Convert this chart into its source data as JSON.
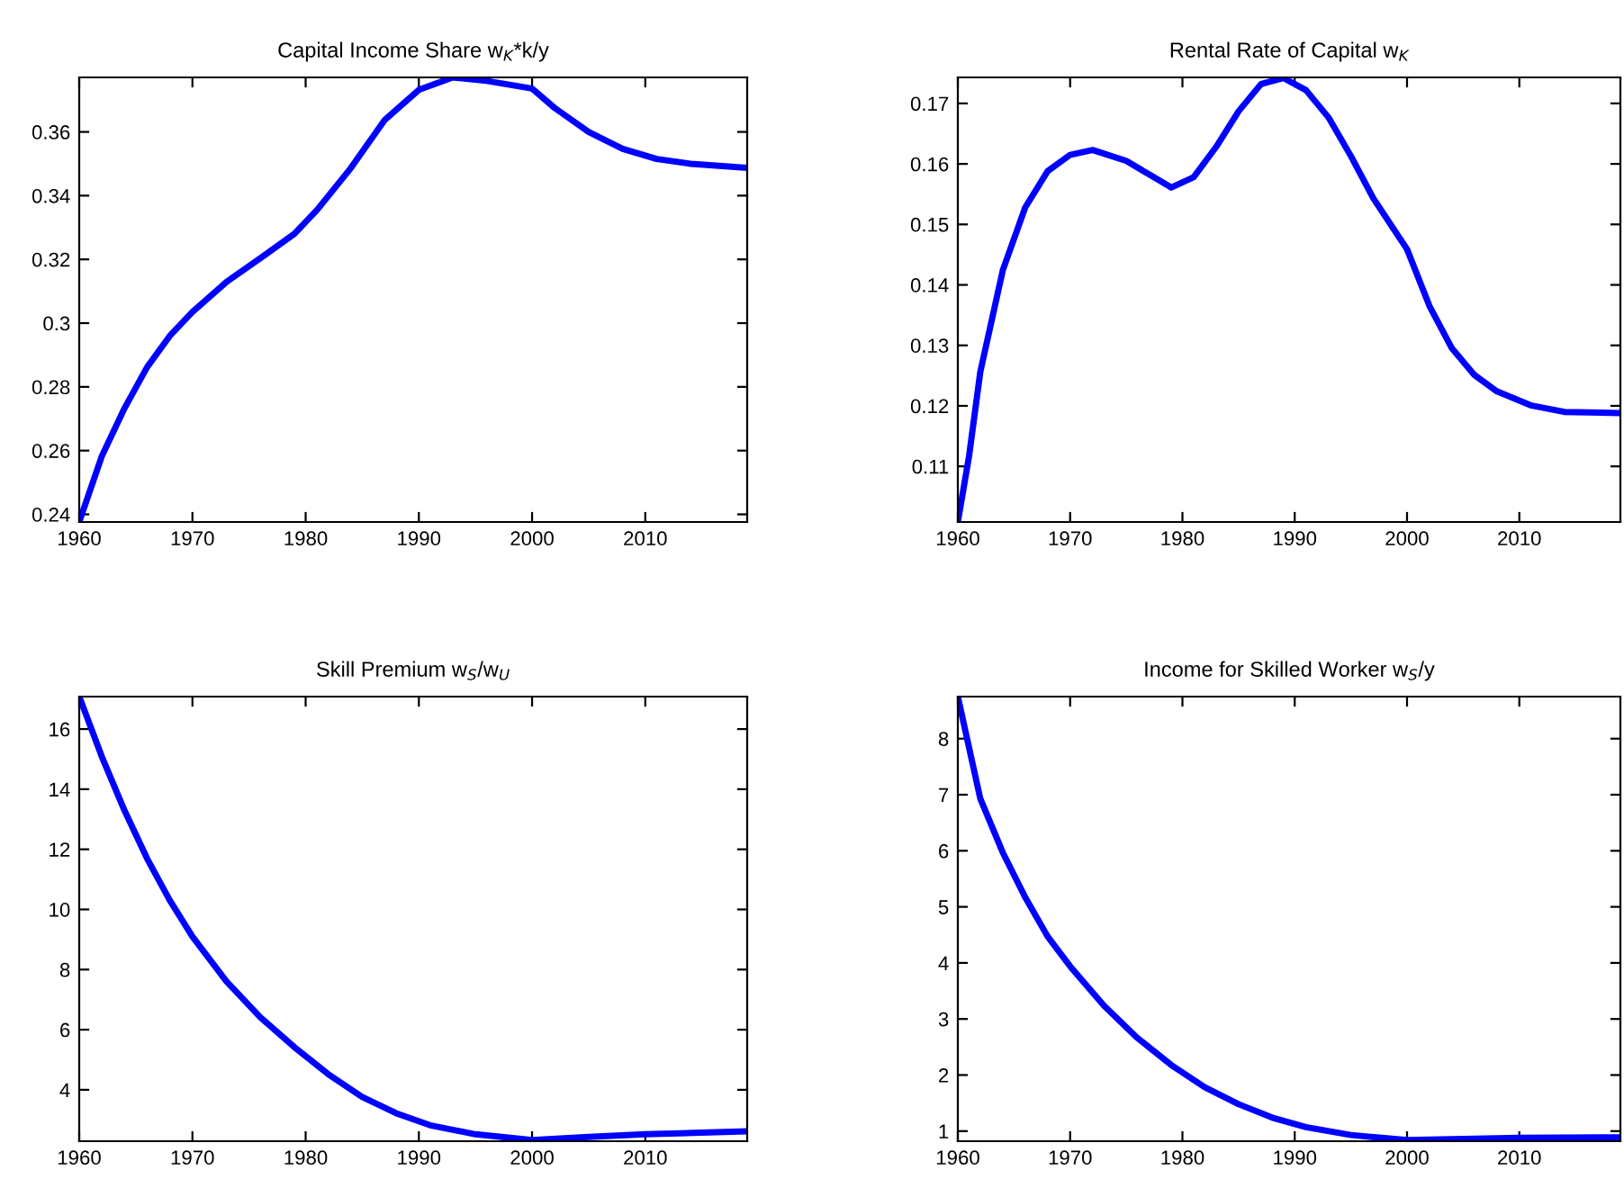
{
  "chart_data": [
    {
      "type": "line",
      "title": "Capital Income Share w$_{K}$*k/y",
      "x": [
        1960,
        1962,
        1964,
        1966,
        1968,
        1970,
        1973,
        1976,
        1979,
        1981,
        1984,
        1987,
        1990,
        1993,
        1996,
        2000,
        2002,
        2005,
        2008,
        2011,
        2014,
        2019
      ],
      "series": [
        {
          "color": "#0000ff",
          "values": [
            0.2376,
            0.2583,
            0.2733,
            0.2862,
            0.296,
            0.3035,
            0.3129,
            0.3204,
            0.328,
            0.3355,
            0.3487,
            0.3638,
            0.3732,
            0.3771,
            0.376,
            0.3736,
            0.3675,
            0.36,
            0.3547,
            0.3515,
            0.35,
            0.3487
          ]
        }
      ],
      "xlim": [
        1960,
        2019
      ],
      "xticks": [
        1960,
        1970,
        1980,
        1990,
        2000,
        2010
      ],
      "ylim": [
        0.2376,
        0.3771
      ],
      "yticks": [
        {
          "value": 0.24,
          "label": "0.24"
        },
        {
          "value": 0.26,
          "label": "0.26"
        },
        {
          "value": 0.28,
          "label": "0.28"
        },
        {
          "value": 0.3,
          "label": "0.3"
        },
        {
          "value": 0.32,
          "label": "0.32"
        },
        {
          "value": 0.34,
          "label": "0.34"
        },
        {
          "value": 0.36,
          "label": "0.36"
        }
      ],
      "grid": false
    },
    {
      "type": "line",
      "title": "Rental Rate of Capital w$_{K}$",
      "x": [
        1960,
        1961,
        1962,
        1964,
        1966,
        1968,
        1970,
        1972,
        1975,
        1977,
        1979,
        1981,
        1983,
        1985,
        1987,
        1989,
        1991,
        1993,
        1995,
        1997,
        2000,
        2002,
        2004,
        2006,
        2008,
        2011,
        2014,
        2019
      ],
      "series": [
        {
          "color": "#0000ff",
          "values": [
            0.1008,
            0.1117,
            0.1256,
            0.1424,
            0.1528,
            0.1588,
            0.1615,
            0.1623,
            0.1605,
            0.1583,
            0.1561,
            0.1578,
            0.1628,
            0.1687,
            0.1732,
            0.1742,
            0.1722,
            0.1677,
            0.1613,
            0.1543,
            0.1459,
            0.1365,
            0.1295,
            0.1251,
            0.1224,
            0.1201,
            0.119,
            0.1188
          ]
        }
      ],
      "xlim": [
        1960,
        2019
      ],
      "xticks": [
        1960,
        1970,
        1980,
        1990,
        2000,
        2010
      ],
      "ylim": [
        0.1008,
        0.1743
      ],
      "yticks": [
        0.11,
        0.12,
        0.13,
        0.14,
        0.15,
        0.16,
        0.17
      ],
      "grid": false
    },
    {
      "type": "line",
      "title": "Skill Premium w$_{S}$/w$_{U}$",
      "x": [
        1960,
        1962,
        1964,
        1966,
        1968,
        1970,
        1973,
        1976,
        1979,
        1982,
        1985,
        1988,
        1991,
        1995,
        2000,
        2005,
        2010,
        2019
      ],
      "series": [
        {
          "color": "#0000ff",
          "values": [
            17.08,
            15.08,
            13.29,
            11.69,
            10.3,
            9.1,
            7.61,
            6.41,
            5.42,
            4.52,
            3.76,
            3.22,
            2.82,
            2.52,
            2.33,
            2.43,
            2.52,
            2.62
          ]
        }
      ],
      "xlim": [
        1960,
        2019
      ],
      "xticks": [
        1960,
        1970,
        1980,
        1990,
        2000,
        2010
      ],
      "ylim": [
        2.29,
        17.08
      ],
      "yticks": [
        4,
        6,
        8,
        10,
        12,
        14,
        16
      ],
      "grid": false
    },
    {
      "type": "line",
      "title": "Income for Skilled Worker w$_{S}$/y",
      "x": [
        1960,
        1962,
        1964,
        1966,
        1968,
        1970,
        1973,
        1976,
        1979,
        1982,
        1985,
        1988,
        1991,
        1995,
        2000,
        2005,
        2010,
        2019
      ],
      "series": [
        {
          "color": "#0000ff",
          "values": [
            8.75,
            6.93,
            5.97,
            5.17,
            4.47,
            3.94,
            3.24,
            2.66,
            2.18,
            1.78,
            1.48,
            1.24,
            1.07,
            0.93,
            0.84,
            0.86,
            0.88,
            0.89
          ]
        }
      ],
      "xlim": [
        1960,
        2019
      ],
      "xticks": [
        1960,
        1970,
        1980,
        1990,
        2000,
        2010
      ],
      "ylim": [
        0.82,
        8.75
      ],
      "yticks": [
        1,
        2,
        3,
        4,
        5,
        6,
        7,
        8
      ],
      "grid": false
    }
  ]
}
